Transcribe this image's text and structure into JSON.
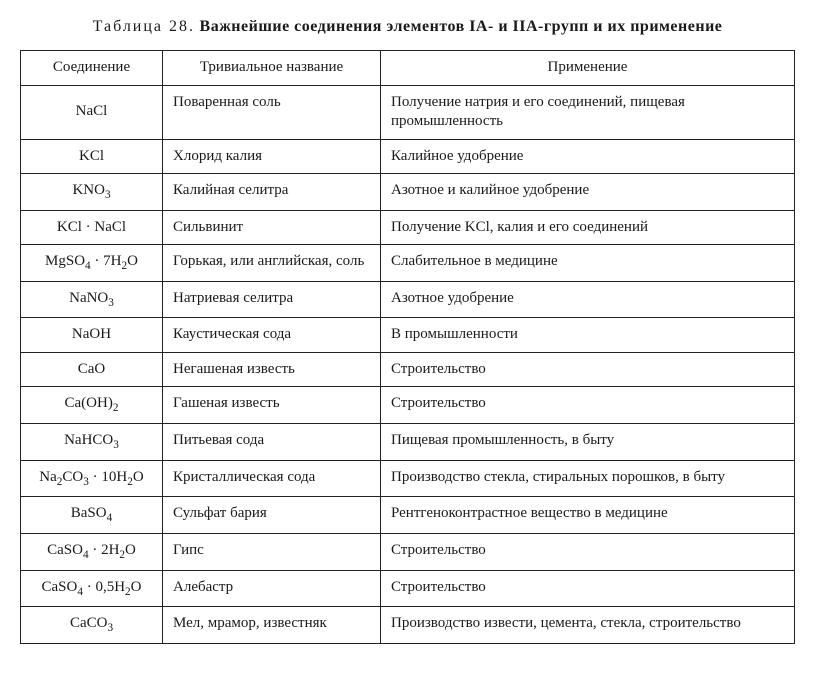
{
  "title_prefix": "Таблица 28.",
  "title_main": "Важнейшие соединения элементов IA- и IIA-групп и их применение",
  "columns": [
    "Соединение",
    "Тривиальное название",
    "Применение"
  ],
  "rows": [
    {
      "compound": "NaCl",
      "trivial": "Поваренная соль",
      "application": "Получение натрия и его соединений, пищевая промышленность"
    },
    {
      "compound": "KCl",
      "trivial": "Хлорид калия",
      "application": "Калийное удобрение"
    },
    {
      "compound": "KNO<sub>3</sub>",
      "trivial": "Калийная селитра",
      "application": "Азотное и калийное удобрение"
    },
    {
      "compound": "KCl · NaCl",
      "trivial": "Сильвинит",
      "application": "Получение KCl, калия и его соединений"
    },
    {
      "compound": "MgSO<sub>4</sub> · 7H<sub>2</sub>O",
      "trivial": "Горькая, или английская, соль",
      "application": "Слабительное в медицине"
    },
    {
      "compound": "NaNO<sub>3</sub>",
      "trivial": "Натриевая селитра",
      "application": "Азотное удобрение"
    },
    {
      "compound": "NaOH",
      "trivial": "Каустическая сода",
      "application": "В промышленности"
    },
    {
      "compound": "CaO",
      "trivial": "Негашеная известь",
      "application": "Строительство"
    },
    {
      "compound": "Ca(OH)<sub>2</sub>",
      "trivial": "Гашеная известь",
      "application": "Строительство"
    },
    {
      "compound": "NaHCO<sub>3</sub>",
      "trivial": "Питьевая сода",
      "application": "Пищевая промышленность, в быту"
    },
    {
      "compound": "Na<sub>2</sub>CO<sub>3</sub> · 10H<sub>2</sub>O",
      "trivial": "Кристаллическая сода",
      "application": "Производство стекла, стиральных порошков, в быту"
    },
    {
      "compound": "BaSO<sub>4</sub>",
      "trivial": "Сульфат бария",
      "application": "Рентгеноконтрастное вещество в медицине"
    },
    {
      "compound": "CaSO<sub>4</sub> · 2H<sub>2</sub>O",
      "trivial": "Гипс",
      "application": "Строительство"
    },
    {
      "compound": "CaSO<sub>4</sub> · 0,5H<sub>2</sub>O",
      "trivial": "Алебастр",
      "application": "Строительство"
    },
    {
      "compound": "CaCO<sub>3</sub>",
      "trivial": "Мел, мрамор, известняк",
      "application": "Производство извести, цемента, стекла, строительство"
    }
  ]
}
